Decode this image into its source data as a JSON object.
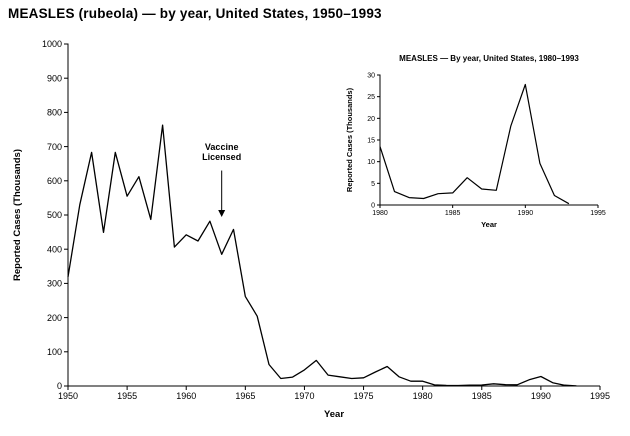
{
  "title": "MEASLES (rubeola) — by year, United States, 1950–1993",
  "colors": {
    "line": "#000000",
    "text": "#000000",
    "background": "#ffffff"
  },
  "chart_data": [
    {
      "id": "main",
      "type": "line",
      "title": "",
      "xlabel": "Year",
      "ylabel": "Reported Cases (Thousands)",
      "xlim": [
        1950,
        1995
      ],
      "ylim": [
        0,
        1000
      ],
      "grid": false,
      "legend": "none",
      "xticks": [
        1950,
        1955,
        1960,
        1965,
        1970,
        1975,
        1980,
        1985,
        1990,
        1995
      ],
      "yticks": [
        0,
        100,
        200,
        300,
        400,
        500,
        600,
        700,
        800,
        900,
        1000
      ],
      "x": [
        1950,
        1951,
        1952,
        1953,
        1954,
        1955,
        1956,
        1957,
        1958,
        1959,
        1960,
        1961,
        1962,
        1963,
        1964,
        1965,
        1966,
        1967,
        1968,
        1969,
        1970,
        1971,
        1972,
        1973,
        1974,
        1975,
        1976,
        1977,
        1978,
        1979,
        1980,
        1981,
        1982,
        1983,
        1984,
        1985,
        1986,
        1987,
        1988,
        1989,
        1990,
        1991,
        1992,
        1993
      ],
      "series": [
        {
          "name": "Reported Cases (Thousands)",
          "values": [
            319,
            530,
            683,
            449,
            683,
            555,
            612,
            487,
            763,
            406,
            442,
            424,
            482,
            385,
            458,
            262,
            204,
            63,
            22,
            26,
            47,
            75,
            32,
            27,
            22,
            24,
            41,
            57,
            27,
            14,
            14,
            3.1,
            1.7,
            1.5,
            2.6,
            2.8,
            6.3,
            3.7,
            3.4,
            18.2,
            27.8,
            9.6,
            2.2,
            0.3
          ]
        }
      ],
      "annotations": [
        {
          "lines": [
            "Vaccine",
            "Licensed"
          ],
          "x": 1963,
          "text_value": 690,
          "arrow_from_value": 630,
          "arrow_to_value": 494
        }
      ]
    },
    {
      "id": "inset",
      "type": "line",
      "title": "MEASLES — By year, United States, 1980–1993",
      "xlabel": "Year",
      "ylabel": "Reported Cases (Thousands)",
      "xlim": [
        1980,
        1995
      ],
      "ylim": [
        0,
        30
      ],
      "grid": false,
      "legend": "none",
      "xticks": [
        1980,
        1985,
        1990,
        1995
      ],
      "yticks": [
        0,
        5,
        10,
        15,
        20,
        25,
        30
      ],
      "x": [
        1980,
        1981,
        1982,
        1983,
        1984,
        1985,
        1986,
        1987,
        1988,
        1989,
        1990,
        1991,
        1992,
        1993
      ],
      "series": [
        {
          "name": "Reported Cases (Thousands)",
          "values": [
            13.5,
            3.1,
            1.7,
            1.5,
            2.6,
            2.8,
            6.3,
            3.7,
            3.4,
            18.2,
            27.8,
            9.6,
            2.2,
            0.3
          ]
        }
      ],
      "annotations": []
    }
  ]
}
